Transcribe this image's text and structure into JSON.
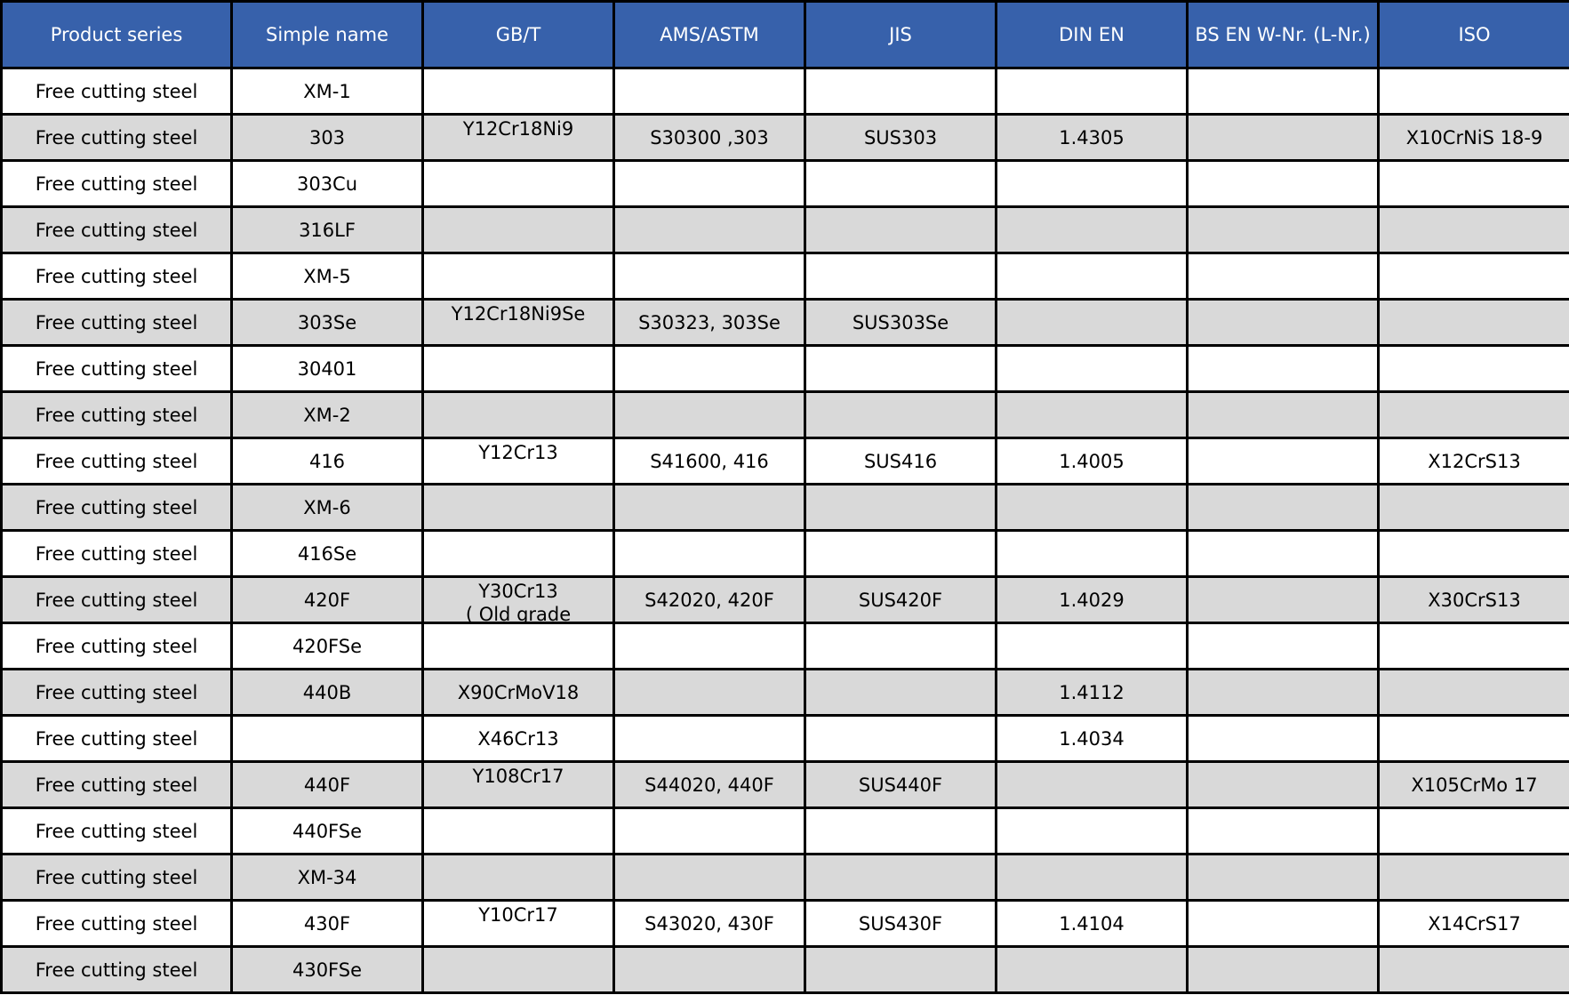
{
  "colors": {
    "header_bg": "#3761ab",
    "alt_row_bg": "#d9d9d9",
    "border": "#000000"
  },
  "headers": [
    "Product series",
    "Simple name",
    "GB/T",
    "AMS/ASTM",
    "JIS",
    "DIN EN",
    "BS EN W-Nr. (L-Nr.)",
    "ISO"
  ],
  "rows": [
    {
      "series": "Free cutting steel",
      "name": "XM-1",
      "gbt": "",
      "astm": "",
      "jis": "",
      "din": "",
      "bs": "",
      "iso": ""
    },
    {
      "series": "Free cutting steel",
      "name": "303",
      "gbt": "Y12Cr18Ni9",
      "astm": "S30300 ,303",
      "jis": "SUS303",
      "din": "1.4305",
      "bs": "",
      "iso": "X10CrNiS 18-9"
    },
    {
      "series": "Free cutting steel",
      "name": "303Cu",
      "gbt": "",
      "astm": "",
      "jis": "",
      "din": "",
      "bs": "",
      "iso": ""
    },
    {
      "series": "Free cutting steel",
      "name": "316LF",
      "gbt": "",
      "astm": "",
      "jis": "",
      "din": "",
      "bs": "",
      "iso": ""
    },
    {
      "series": "Free cutting steel",
      "name": "XM-5",
      "gbt": "",
      "astm": "",
      "jis": "",
      "din": "",
      "bs": "",
      "iso": ""
    },
    {
      "series": "Free cutting steel",
      "name": "303Se",
      "gbt": "Y12Cr18Ni9Se",
      "astm": "S30323, 303Se",
      "jis": "SUS303Se",
      "din": "",
      "bs": "",
      "iso": ""
    },
    {
      "series": "Free cutting steel",
      "name": "30401",
      "gbt": "",
      "astm": "",
      "jis": "",
      "din": "",
      "bs": "",
      "iso": ""
    },
    {
      "series": "Free cutting steel",
      "name": "XM-2",
      "gbt": "",
      "astm": "",
      "jis": "",
      "din": "",
      "bs": "",
      "iso": ""
    },
    {
      "series": "Free cutting steel",
      "name": "416",
      "gbt": "Y12Cr13",
      "astm": "S41600, 416",
      "jis": "SUS416",
      "din": "1.4005",
      "bs": "",
      "iso": "X12CrS13"
    },
    {
      "series": "Free cutting steel",
      "name": "XM-6",
      "gbt": "",
      "astm": "",
      "jis": "",
      "din": "",
      "bs": "",
      "iso": ""
    },
    {
      "series": "Free cutting steel",
      "name": "416Se",
      "gbt": "",
      "astm": "",
      "jis": "",
      "din": "",
      "bs": "",
      "iso": ""
    },
    {
      "series": "Free cutting steel",
      "name": "420F",
      "gbt": "Y30Cr13",
      "gbt_note": "( Old grade",
      "astm": "S42020, 420F",
      "jis": "SUS420F",
      "din": "1.4029",
      "bs": "",
      "iso": "X30CrS13"
    },
    {
      "series": "Free cutting steel",
      "name": "420FSe",
      "gbt": "",
      "astm": "",
      "jis": "",
      "din": "",
      "bs": "",
      "iso": ""
    },
    {
      "series": "Free cutting steel",
      "name": "440B",
      "gbt": "X90CrMoV18",
      "astm": "",
      "jis": "",
      "din": "1.4112",
      "bs": "",
      "iso": ""
    },
    {
      "series": "Free cutting steel",
      "name": "",
      "gbt": "X46Cr13",
      "astm": "",
      "jis": "",
      "din": "1.4034",
      "bs": "",
      "iso": ""
    },
    {
      "series": "Free cutting steel",
      "name": "440F",
      "gbt": "Y108Cr17",
      "astm": "S44020, 440F",
      "jis": "SUS440F",
      "din": "",
      "bs": "",
      "iso": "X105CrMo 17"
    },
    {
      "series": "Free cutting steel",
      "name": "440FSe",
      "gbt": "",
      "astm": "",
      "jis": "",
      "din": "",
      "bs": "",
      "iso": ""
    },
    {
      "series": "Free cutting steel",
      "name": "XM-34",
      "gbt": "",
      "astm": "",
      "jis": "",
      "din": "",
      "bs": "",
      "iso": ""
    },
    {
      "series": "Free cutting steel",
      "name": "430F",
      "gbt": "Y10Cr17",
      "astm": "S43020, 430F",
      "jis": "SUS430F",
      "din": "1.4104",
      "bs": "",
      "iso": "X14CrS17"
    },
    {
      "series": "Free cutting steel",
      "name": "430FSe",
      "gbt": "",
      "astm": "",
      "jis": "",
      "din": "",
      "bs": "",
      "iso": ""
    }
  ]
}
